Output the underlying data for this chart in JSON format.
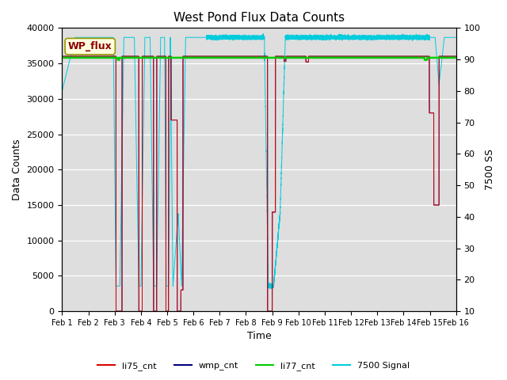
{
  "title": "West Pond Flux Data Counts",
  "xlabel": "Time",
  "ylabel_left": "Data Counts",
  "ylabel_right": "7500 SS",
  "annotation": "WP_flux",
  "xlim_days": [
    0,
    15
  ],
  "ylim_left": [
    0,
    40000
  ],
  "ylim_right": [
    10,
    100
  ],
  "xtick_labels": [
    "Feb 1",
    "Feb 2",
    "Feb 3",
    "Feb 4",
    "Feb 5",
    "Feb 6",
    "Feb 7",
    "Feb 8",
    "Feb 9",
    "Feb 10",
    "Feb 11",
    "Feb 12",
    "Feb 13",
    "Feb 14",
    "Feb 15",
    "Feb 16"
  ],
  "yticks_left": [
    0,
    5000,
    10000,
    15000,
    20000,
    25000,
    30000,
    35000,
    40000
  ],
  "yticks_right": [
    10,
    20,
    30,
    40,
    50,
    60,
    70,
    80,
    90,
    100
  ],
  "bg_color": "#dedede",
  "colors": {
    "li75_cnt": "#dd0000",
    "wmp_cnt": "#000080",
    "li77_cnt": "#00cc00",
    "signal7500": "#00ccdd"
  },
  "legend_entries": [
    "li75_cnt",
    "wmp_cnt",
    "li77_cnt",
    "7500 Signal"
  ],
  "li77_base": 35800,
  "li75_base": 36000
}
